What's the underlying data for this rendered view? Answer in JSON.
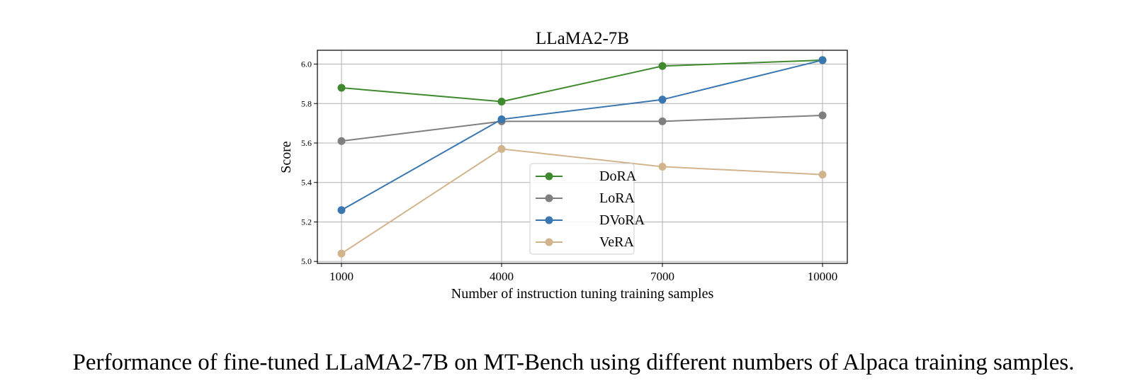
{
  "chart_data": {
    "type": "line",
    "title": "LLaMA2-7B",
    "xlabel": "Number of instruction tuning training samples",
    "ylabel": "Score",
    "x": [
      1000,
      4000,
      7000,
      10000
    ],
    "x_tick_labels": [
      "1000",
      "4000",
      "7000",
      "10000"
    ],
    "ylim": [
      4.99,
      6.07
    ],
    "y_ticks": [
      5.0,
      5.2,
      5.4,
      5.6,
      5.8,
      6.0
    ],
    "y_tick_labels": [
      "5.0",
      "5.2",
      "5.4",
      "5.6",
      "5.8",
      "6.0"
    ],
    "grid": true,
    "legend_position": "lower-center",
    "series": [
      {
        "name": "DoRA",
        "color": "#3f8a2e",
        "values": [
          5.88,
          5.81,
          5.99,
          6.02
        ]
      },
      {
        "name": "LoRA",
        "color": "#7f7f7f",
        "values": [
          5.61,
          5.71,
          5.71,
          5.74
        ]
      },
      {
        "name": "DVoRA",
        "color": "#3a76b0",
        "values": [
          5.26,
          5.72,
          5.82,
          6.02
        ]
      },
      {
        "name": "VeRA",
        "color": "#d2b48c",
        "values": [
          5.04,
          5.57,
          5.48,
          5.44
        ]
      }
    ]
  },
  "caption": "Performance of fine-tuned LLaMA2-7B on MT-Bench using different numbers of Alpaca training samples."
}
